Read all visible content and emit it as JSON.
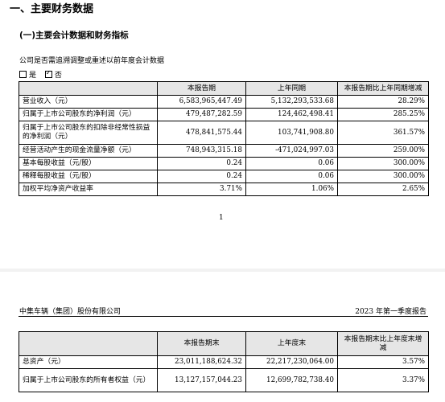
{
  "section_title": "一、主要财务数据",
  "subsection_title": "(一)主要会计数据和财务指标",
  "restate_note": "公司是否需追溯调整或重述以前年度会计数据",
  "restate_options": [
    {
      "label": "是",
      "checked": false
    },
    {
      "label": "否",
      "checked": true
    }
  ],
  "table1": {
    "headers": [
      "",
      "本报告期",
      "上年同期",
      "本报告期比上年同期增减"
    ],
    "rows": [
      [
        "营业收入（元）",
        "6,583,965,447.49",
        "5,132,293,533.68",
        "28.29%"
      ],
      [
        "归属于上市公司股东的净利润（元）",
        "479,487,282.59",
        "124,462,498.41",
        "285.25%"
      ],
      [
        "归属于上市公司股东的扣除非经常性损益的净利润（元）",
        "478,841,575.44",
        "103,741,908.80",
        "361.57%"
      ],
      [
        "经营活动产生的现金流量净额（元）",
        "748,943,315.18",
        "-471,024,997.03",
        "259.00%"
      ],
      [
        "基本每股收益（元/股）",
        "0.24",
        "0.06",
        "300.00%"
      ],
      [
        "稀释每股收益（元/股）",
        "0.24",
        "0.06",
        "300.00%"
      ],
      [
        "加权平均净资产收益率",
        "3.71%",
        "1.06%",
        "2.65%"
      ]
    ]
  },
  "page_number": "1",
  "company_name": "中集车辆（集团）股份有限公司",
  "report_title": "2023 年第一季度报告",
  "table2": {
    "headers": [
      "",
      "本报告期末",
      "上年度末",
      "本报告期末比上年度末增减"
    ],
    "rows": [
      [
        "总资产（元）",
        "23,011,188,624.32",
        "22,217,230,064.00",
        "3.57%"
      ],
      [
        "归属于上市公司股东的所有者权益（元）",
        "13,127,157,044.23",
        "12,699,782,738.40",
        "3.37%"
      ]
    ]
  }
}
